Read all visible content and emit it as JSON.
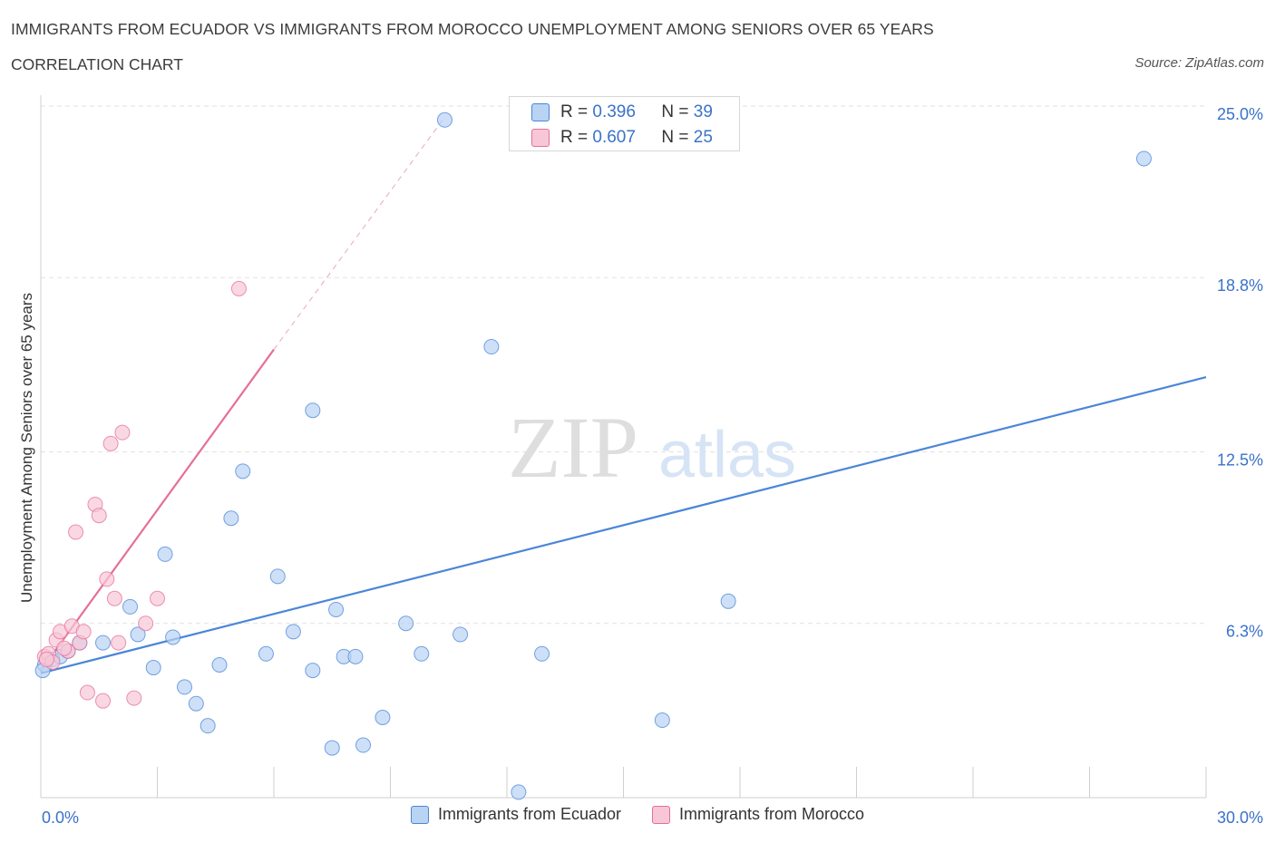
{
  "header": {
    "title": "IMMIGRANTS FROM ECUADOR VS IMMIGRANTS FROM MOROCCO UNEMPLOYMENT AMONG SENIORS OVER 65 YEARS",
    "subtitle": "CORRELATION CHART",
    "source": "Source: ZipAtlas.com"
  },
  "watermark": {
    "zip": "ZIP",
    "atlas": "atlas"
  },
  "stats": [
    {
      "r_label": "R = ",
      "r": "0.396",
      "n_label": "N = ",
      "n": "39"
    },
    {
      "r_label": "R = ",
      "r": "0.607",
      "n_label": "N = ",
      "n": "25"
    }
  ],
  "chart_data": {
    "type": "scatter",
    "ylabel": "Unemployment Among Seniors over 65 years",
    "xlim": [
      0,
      30
    ],
    "ylim": [
      0,
      25
    ],
    "x_tick_labels": [
      {
        "value": 0,
        "label": "0.0%"
      },
      {
        "value": 30,
        "label": "30.0%"
      }
    ],
    "y_tick_labels": [
      {
        "value": 6.3,
        "label": "6.3%"
      },
      {
        "value": 12.5,
        "label": "12.5%"
      },
      {
        "value": 18.8,
        "label": "18.8%"
      },
      {
        "value": 25.0,
        "label": "25.0%"
      }
    ],
    "grid": true,
    "legend_position": "bottom",
    "series": [
      {
        "name": "Immigrants from Ecuador",
        "color": "#4a86d8",
        "fill": "#b9d3f3",
        "points": [
          [
            0.1,
            4.8
          ],
          [
            0.3,
            5.0
          ],
          [
            0.5,
            5.1
          ],
          [
            0.7,
            5.3
          ],
          [
            1.0,
            5.6
          ],
          [
            1.6,
            5.6
          ],
          [
            2.3,
            6.9
          ],
          [
            2.5,
            5.9
          ],
          [
            2.9,
            4.7
          ],
          [
            3.2,
            8.8
          ],
          [
            3.4,
            5.8
          ],
          [
            3.7,
            4.0
          ],
          [
            4.0,
            3.4
          ],
          [
            4.3,
            2.6
          ],
          [
            4.6,
            4.8
          ],
          [
            4.9,
            10.1
          ],
          [
            5.2,
            11.8
          ],
          [
            5.8,
            5.2
          ],
          [
            6.1,
            8.0
          ],
          [
            6.5,
            6.0
          ],
          [
            7.0,
            14.0
          ],
          [
            7.0,
            4.6
          ],
          [
            7.5,
            1.8
          ],
          [
            7.6,
            6.8
          ],
          [
            7.8,
            5.1
          ],
          [
            8.1,
            5.1
          ],
          [
            8.3,
            1.9
          ],
          [
            8.8,
            2.9
          ],
          [
            9.4,
            6.3
          ],
          [
            9.8,
            5.2
          ],
          [
            10.4,
            24.5
          ],
          [
            10.8,
            5.9
          ],
          [
            11.6,
            16.3
          ],
          [
            12.3,
            0.2
          ],
          [
            12.9,
            5.2
          ],
          [
            16.0,
            2.8
          ],
          [
            17.7,
            7.1
          ],
          [
            28.4,
            23.1
          ],
          [
            0.05,
            4.6
          ]
        ],
        "trendline": {
          "x": [
            0,
            30
          ],
          "y": [
            4.5,
            15.2
          ]
        }
      },
      {
        "name": "Immigrants from Morocco",
        "color": "#e56f97",
        "fill": "#f8c7d7",
        "points": [
          [
            0.1,
            5.1
          ],
          [
            0.2,
            5.2
          ],
          [
            0.3,
            4.9
          ],
          [
            0.4,
            5.7
          ],
          [
            0.5,
            6.0
          ],
          [
            0.7,
            5.3
          ],
          [
            0.8,
            6.2
          ],
          [
            0.9,
            9.6
          ],
          [
            1.0,
            5.6
          ],
          [
            1.1,
            6.0
          ],
          [
            1.2,
            3.8
          ],
          [
            1.4,
            10.6
          ],
          [
            1.5,
            10.2
          ],
          [
            1.6,
            3.5
          ],
          [
            1.7,
            7.9
          ],
          [
            1.8,
            12.8
          ],
          [
            1.9,
            7.2
          ],
          [
            2.0,
            5.6
          ],
          [
            2.1,
            13.2
          ],
          [
            2.4,
            3.6
          ],
          [
            2.7,
            6.3
          ],
          [
            3.0,
            7.2
          ],
          [
            5.1,
            18.4
          ],
          [
            0.15,
            5.0
          ],
          [
            0.6,
            5.4
          ]
        ],
        "trendline": {
          "x": [
            0,
            6.0
          ],
          "y": [
            4.6,
            16.2
          ]
        },
        "trendline_extension": {
          "x": [
            6.0,
            10.4
          ],
          "y": [
            16.2,
            24.6
          ]
        }
      }
    ]
  }
}
